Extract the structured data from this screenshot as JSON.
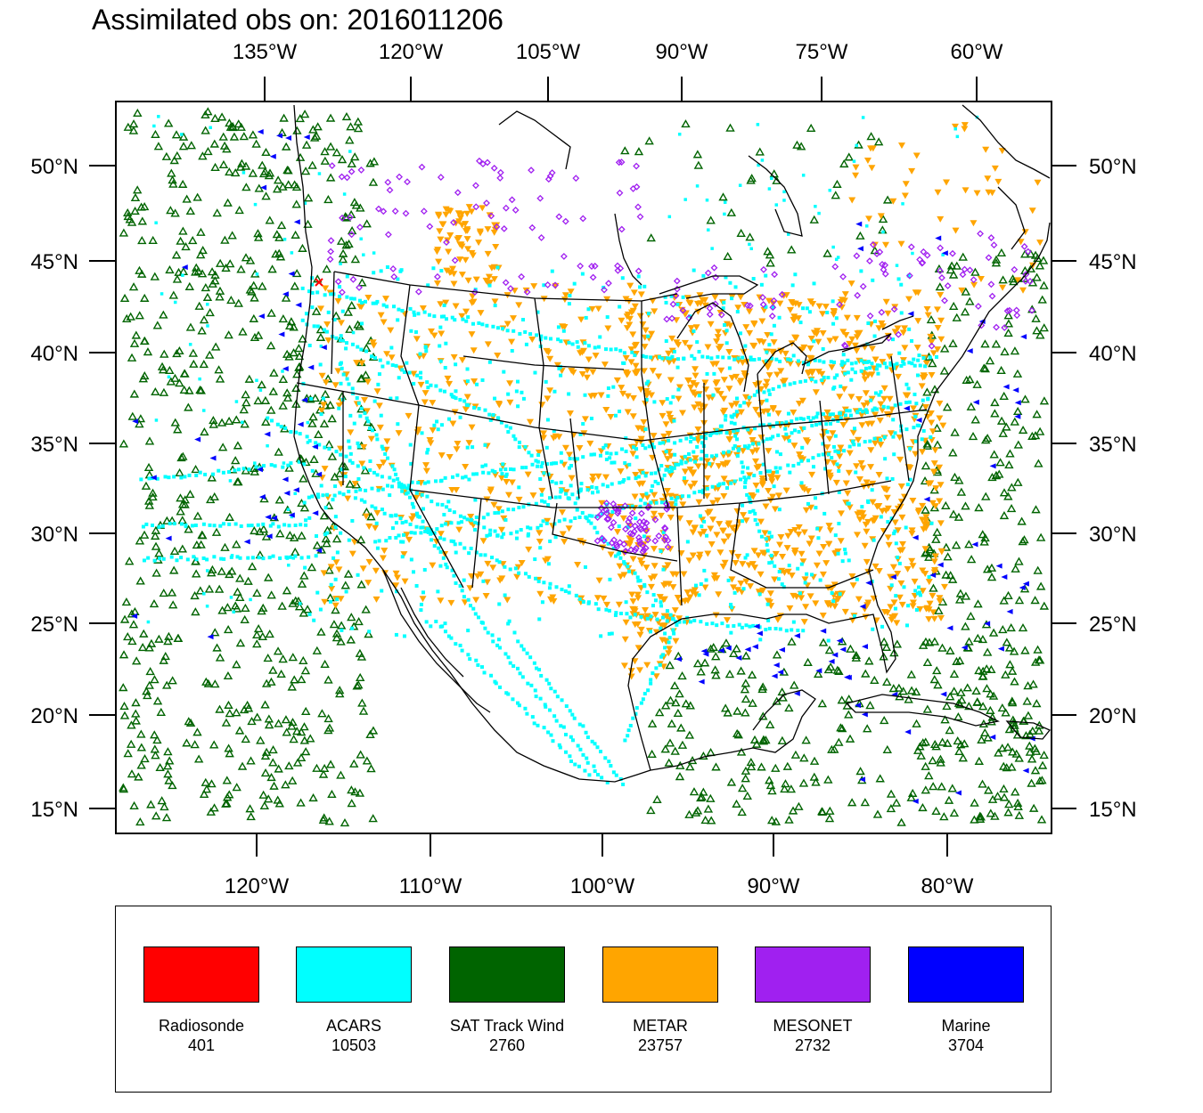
{
  "title": "Assimilated obs on: 2016011206",
  "map": {
    "top_axis_labels": [
      "135°W",
      "120°W",
      "105°W",
      "90°W",
      "75°W",
      "60°W"
    ],
    "bottom_axis_labels": [
      "120°W",
      "110°W",
      "100°W",
      "90°W",
      "80°W"
    ],
    "left_axis_labels": [
      "50°N",
      "45°N",
      "40°N",
      "35°N",
      "30°N",
      "25°N",
      "20°N",
      "15°N"
    ],
    "right_axis_labels": [
      "50°N",
      "45°N",
      "40°N",
      "35°N",
      "30°N",
      "25°N",
      "20°N",
      "15°N"
    ]
  },
  "legend": {
    "items": [
      {
        "label": "Radiosonde",
        "count": "401",
        "color": "#ff0000"
      },
      {
        "label": "ACARS",
        "count": "10503",
        "color": "#00ffff"
      },
      {
        "label": "SAT Track Wind",
        "count": "2760",
        "color": "#006400"
      },
      {
        "label": "METAR",
        "count": "23757",
        "color": "#ffa500"
      },
      {
        "label": "MESONET",
        "count": "2732",
        "color": "#a020f0"
      },
      {
        "label": "Marine",
        "count": "3704",
        "color": "#0000ff"
      }
    ]
  }
}
